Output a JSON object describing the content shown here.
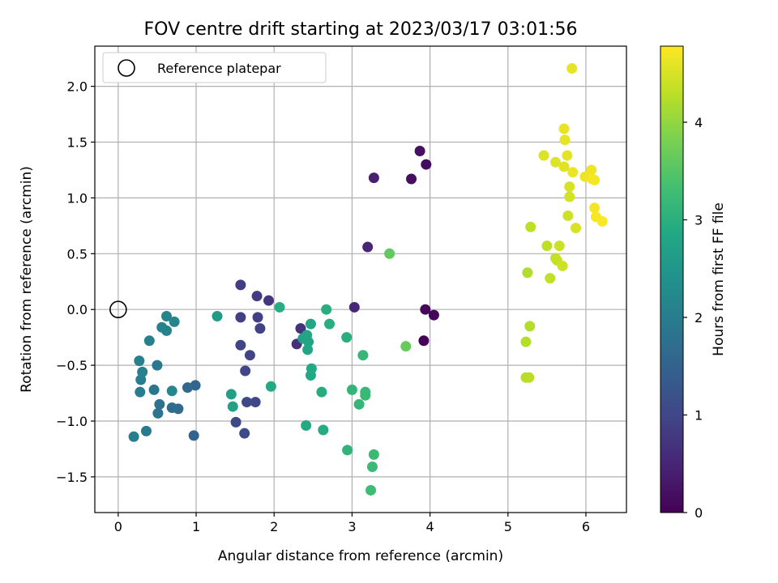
{
  "chart_data": {
    "type": "scatter",
    "title": "FOV centre drift starting at 2023/03/17 03:01:56",
    "xlabel": "Angular distance from reference (arcmin)",
    "ylabel": "Rotation from reference (arcmin)",
    "xlim": [
      -0.3,
      6.52
    ],
    "ylim": [
      -1.82,
      2.36
    ],
    "xticks": [
      0,
      1,
      2,
      3,
      4,
      5,
      6
    ],
    "yticks": [
      -1.5,
      -1.0,
      -0.5,
      0.0,
      0.5,
      1.0,
      1.5,
      2.0
    ],
    "xtick_labels": [
      "0",
      "1",
      "2",
      "3",
      "4",
      "5",
      "6"
    ],
    "ytick_labels": [
      "−1.5",
      "−1.0",
      "−0.5",
      "0.0",
      "0.5",
      "1.0",
      "1.5",
      "2.0"
    ],
    "grid": true,
    "legend": {
      "position": "upper left",
      "entries": [
        {
          "label": "Reference platepar",
          "marker": "open-circle"
        }
      ]
    },
    "reference_point": {
      "x": 0.0,
      "y": 0.0
    },
    "colorbar": {
      "label": "Hours from first FF file",
      "colormap": "viridis",
      "range": [
        0,
        4.78
      ],
      "ticks": [
        0,
        1,
        2,
        3,
        4
      ],
      "tick_labels": [
        "0",
        "1",
        "2",
        "3",
        "4"
      ]
    },
    "points": [
      {
        "x": 3.92,
        "y": -0.28,
        "c": 0.03
      },
      {
        "x": 4.05,
        "y": -0.05,
        "c": 0.06
      },
      {
        "x": 3.94,
        "y": 0.0,
        "c": 0.1
      },
      {
        "x": 3.95,
        "y": 1.3,
        "c": 0.14
      },
      {
        "x": 3.76,
        "y": 1.17,
        "c": 0.18
      },
      {
        "x": 3.87,
        "y": 1.42,
        "c": 0.22
      },
      {
        "x": 3.28,
        "y": 1.18,
        "c": 0.42
      },
      {
        "x": 3.2,
        "y": 0.56,
        "c": 0.5
      },
      {
        "x": 3.03,
        "y": 0.02,
        "c": 0.55
      },
      {
        "x": 2.29,
        "y": -0.31,
        "c": 0.62
      },
      {
        "x": 2.34,
        "y": -0.17,
        "c": 0.68
      },
      {
        "x": 1.93,
        "y": 0.08,
        "c": 0.74
      },
      {
        "x": 1.78,
        "y": 0.12,
        "c": 0.8
      },
      {
        "x": 1.57,
        "y": 0.22,
        "c": 0.85
      },
      {
        "x": 1.57,
        "y": -0.07,
        "c": 0.88
      },
      {
        "x": 1.79,
        "y": -0.07,
        "c": 0.9
      },
      {
        "x": 1.82,
        "y": -0.17,
        "c": 0.92
      },
      {
        "x": 1.57,
        "y": -0.32,
        "c": 0.95
      },
      {
        "x": 1.69,
        "y": -0.41,
        "c": 0.97
      },
      {
        "x": 1.63,
        "y": -0.55,
        "c": 1.0
      },
      {
        "x": 1.76,
        "y": -0.83,
        "c": 1.02
      },
      {
        "x": 1.65,
        "y": -0.83,
        "c": 1.04
      },
      {
        "x": 1.51,
        "y": -1.01,
        "c": 1.06
      },
      {
        "x": 1.62,
        "y": -1.11,
        "c": 1.08
      },
      {
        "x": 0.97,
        "y": -1.13,
        "c": 1.5
      },
      {
        "x": 0.99,
        "y": -0.68,
        "c": 1.55
      },
      {
        "x": 0.89,
        "y": -0.7,
        "c": 1.6
      },
      {
        "x": 0.77,
        "y": -0.89,
        "c": 1.65
      },
      {
        "x": 0.69,
        "y": -0.88,
        "c": 1.7
      },
      {
        "x": 0.53,
        "y": -0.85,
        "c": 1.75
      },
      {
        "x": 0.51,
        "y": -0.93,
        "c": 1.8
      },
      {
        "x": 0.46,
        "y": -0.72,
        "c": 1.85
      },
      {
        "x": 0.5,
        "y": -0.5,
        "c": 1.9
      },
      {
        "x": 0.36,
        "y": -1.09,
        "c": 1.95
      },
      {
        "x": 0.2,
        "y": -1.14,
        "c": 2.0
      },
      {
        "x": 0.28,
        "y": -0.74,
        "c": 2.0
      },
      {
        "x": 0.29,
        "y": -0.63,
        "c": 2.02
      },
      {
        "x": 0.31,
        "y": -0.56,
        "c": 2.04
      },
      {
        "x": 0.27,
        "y": -0.46,
        "c": 2.06
      },
      {
        "x": 0.4,
        "y": -0.28,
        "c": 2.08
      },
      {
        "x": 0.56,
        "y": -0.16,
        "c": 2.1
      },
      {
        "x": 0.62,
        "y": -0.19,
        "c": 2.12
      },
      {
        "x": 0.62,
        "y": -0.06,
        "c": 2.14
      },
      {
        "x": 0.72,
        "y": -0.11,
        "c": 2.16
      },
      {
        "x": 0.69,
        "y": -0.73,
        "c": 2.18
      },
      {
        "x": 1.27,
        "y": -0.06,
        "c": 2.6
      },
      {
        "x": 1.45,
        "y": -0.76,
        "c": 2.7
      },
      {
        "x": 1.47,
        "y": -0.87,
        "c": 2.72
      },
      {
        "x": 1.96,
        "y": -0.69,
        "c": 2.9
      },
      {
        "x": 2.07,
        "y": 0.02,
        "c": 2.95
      },
      {
        "x": 2.37,
        "y": -0.26,
        "c": 2.75
      },
      {
        "x": 2.42,
        "y": -0.23,
        "c": 2.78
      },
      {
        "x": 2.44,
        "y": -0.29,
        "c": 2.8
      },
      {
        "x": 2.43,
        "y": -0.36,
        "c": 2.82
      },
      {
        "x": 2.47,
        "y": -0.13,
        "c": 2.84
      },
      {
        "x": 2.47,
        "y": -0.59,
        "c": 2.86
      },
      {
        "x": 2.48,
        "y": -0.53,
        "c": 2.88
      },
      {
        "x": 2.41,
        "y": -1.04,
        "c": 2.9
      },
      {
        "x": 2.61,
        "y": -0.74,
        "c": 2.92
      },
      {
        "x": 2.63,
        "y": -1.08,
        "c": 2.94
      },
      {
        "x": 2.67,
        "y": 0.0,
        "c": 2.96
      },
      {
        "x": 2.71,
        "y": -0.13,
        "c": 2.98
      },
      {
        "x": 2.93,
        "y": -0.25,
        "c": 3.0
      },
      {
        "x": 2.94,
        "y": -1.26,
        "c": 3.1
      },
      {
        "x": 3.0,
        "y": -0.72,
        "c": 3.12
      },
      {
        "x": 3.09,
        "y": -0.85,
        "c": 3.14
      },
      {
        "x": 3.14,
        "y": -0.41,
        "c": 3.16
      },
      {
        "x": 3.17,
        "y": -0.74,
        "c": 3.18
      },
      {
        "x": 3.17,
        "y": -0.77,
        "c": 3.2
      },
      {
        "x": 3.26,
        "y": -1.41,
        "c": 3.22
      },
      {
        "x": 3.28,
        "y": -1.3,
        "c": 3.24
      },
      {
        "x": 3.24,
        "y": -1.62,
        "c": 3.26
      },
      {
        "x": 3.48,
        "y": 0.5,
        "c": 3.6
      },
      {
        "x": 3.69,
        "y": -0.33,
        "c": 3.65
      },
      {
        "x": 5.25,
        "y": 0.33,
        "c": 4.2
      },
      {
        "x": 5.28,
        "y": -0.15,
        "c": 4.22
      },
      {
        "x": 5.23,
        "y": -0.29,
        "c": 4.24
      },
      {
        "x": 5.23,
        "y": -0.61,
        "c": 4.26
      },
      {
        "x": 5.27,
        "y": -0.61,
        "c": 4.28
      },
      {
        "x": 5.29,
        "y": 0.74,
        "c": 4.3
      },
      {
        "x": 5.5,
        "y": 0.57,
        "c": 4.32
      },
      {
        "x": 5.54,
        "y": 0.28,
        "c": 4.34
      },
      {
        "x": 5.61,
        "y": 0.46,
        "c": 4.36
      },
      {
        "x": 5.63,
        "y": 0.44,
        "c": 4.38
      },
      {
        "x": 5.66,
        "y": 0.57,
        "c": 4.4
      },
      {
        "x": 5.7,
        "y": 0.39,
        "c": 4.42
      },
      {
        "x": 5.77,
        "y": 0.84,
        "c": 4.44
      },
      {
        "x": 5.79,
        "y": 1.01,
        "c": 4.46
      },
      {
        "x": 5.79,
        "y": 1.1,
        "c": 4.48
      },
      {
        "x": 5.87,
        "y": 0.73,
        "c": 4.5
      },
      {
        "x": 5.46,
        "y": 1.38,
        "c": 4.52
      },
      {
        "x": 5.61,
        "y": 1.32,
        "c": 4.54
      },
      {
        "x": 5.72,
        "y": 1.28,
        "c": 4.56
      },
      {
        "x": 5.76,
        "y": 1.38,
        "c": 4.58
      },
      {
        "x": 5.73,
        "y": 1.52,
        "c": 4.6
      },
      {
        "x": 5.72,
        "y": 1.62,
        "c": 4.62
      },
      {
        "x": 5.83,
        "y": 1.23,
        "c": 4.64
      },
      {
        "x": 5.99,
        "y": 1.19,
        "c": 4.66
      },
      {
        "x": 6.07,
        "y": 1.25,
        "c": 4.68
      },
      {
        "x": 6.08,
        "y": 1.17,
        "c": 4.7
      },
      {
        "x": 6.11,
        "y": 1.16,
        "c": 4.71
      },
      {
        "x": 6.11,
        "y": 0.91,
        "c": 4.72
      },
      {
        "x": 6.13,
        "y": 0.83,
        "c": 4.74
      },
      {
        "x": 6.21,
        "y": 0.79,
        "c": 4.76
      },
      {
        "x": 5.82,
        "y": 2.16,
        "c": 4.6
      }
    ]
  }
}
